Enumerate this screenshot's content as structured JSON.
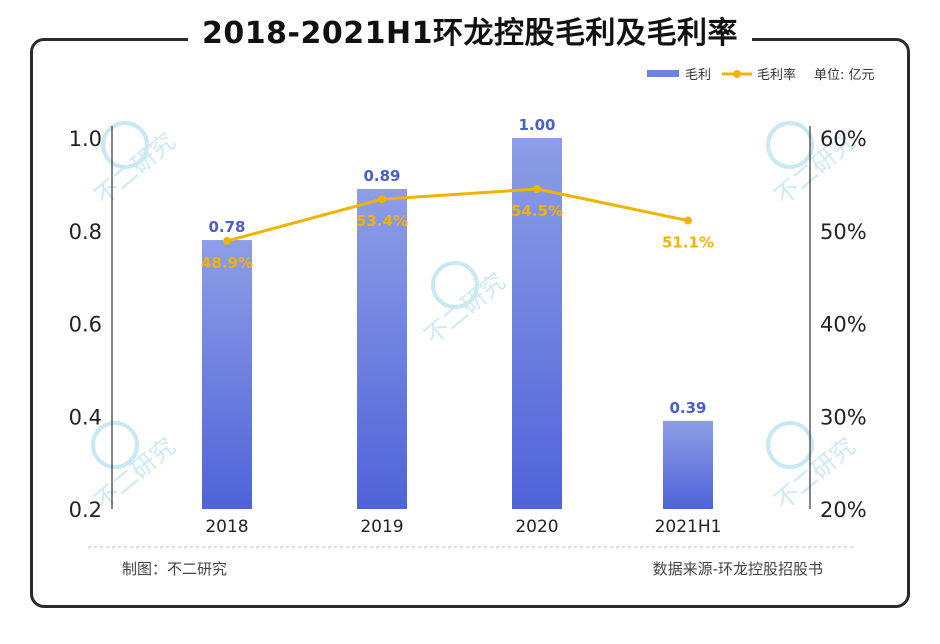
{
  "title": "2018-2021H1环龙控股毛利及毛利率",
  "legend": {
    "bar": "毛利",
    "line": "毛利率",
    "unit": "单位: 亿元"
  },
  "footer": {
    "left": "制图：不二研究",
    "right": "数据来源-环龙控股招股书"
  },
  "watermark": "不二研究",
  "colors": {
    "bar_top": "#8d9ee6",
    "bar_bottom": "#4f63d9",
    "line": "#f0b400",
    "bar_label": "#4a5fc9",
    "axis": "#333333"
  },
  "chart_data": {
    "type": "bar+line",
    "categories": [
      "2018",
      "2019",
      "2020",
      "2021H1"
    ],
    "series": [
      {
        "name": "毛利",
        "type": "bar",
        "axis": "left",
        "values": [
          0.78,
          0.89,
          1.0,
          0.39
        ],
        "labels": [
          "0.78",
          "0.89",
          "1.00",
          "0.39"
        ]
      },
      {
        "name": "毛利率",
        "type": "line",
        "axis": "right",
        "values": [
          48.9,
          53.4,
          54.5,
          51.1
        ],
        "labels": [
          "48.9%",
          "53.4%",
          "54.5%",
          "51.1%"
        ]
      }
    ],
    "y_left": {
      "range": [
        0.2,
        1.0
      ],
      "ticks": [
        "1.0",
        "0.8",
        "0.6",
        "0.4",
        "0.2"
      ],
      "tick_values": [
        1.0,
        0.8,
        0.6,
        0.4,
        0.2
      ]
    },
    "y_right": {
      "range": [
        20,
        60
      ],
      "ticks": [
        "60%",
        "50%",
        "40%",
        "30%",
        "20%"
      ],
      "tick_values": [
        60,
        50,
        40,
        30,
        20
      ]
    },
    "grid": false,
    "legend_position": "top-right"
  }
}
